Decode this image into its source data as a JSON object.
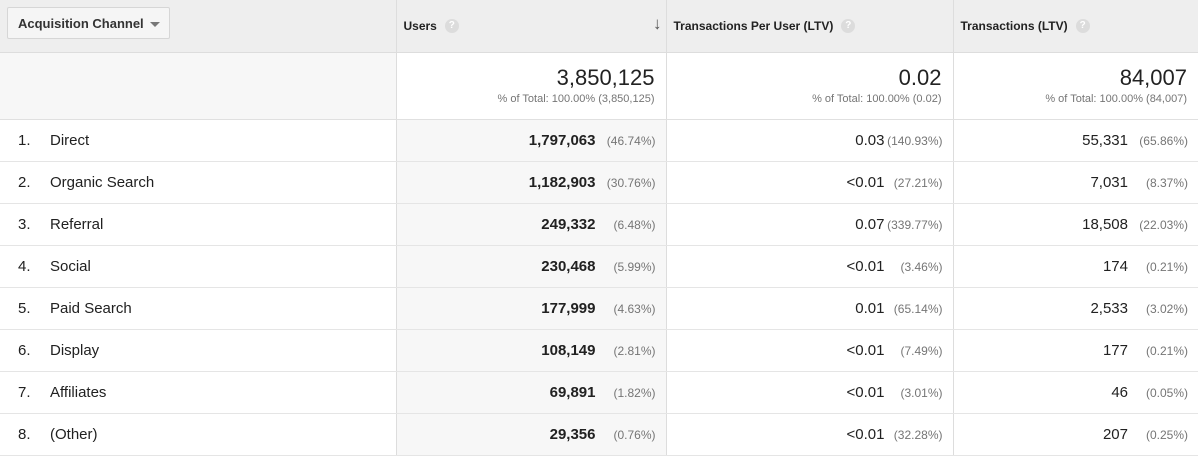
{
  "header": {
    "dimension_label": "Acquisition Channel",
    "columns": [
      {
        "label": "Users",
        "help": "?"
      },
      {
        "label": "Transactions Per User (LTV)",
        "help": "?"
      },
      {
        "label": "Transactions (LTV)",
        "help": "?"
      }
    ]
  },
  "totals": {
    "users": {
      "value": "3,850,125",
      "sub": "% of Total: 100.00% (3,850,125)"
    },
    "tpu": {
      "value": "0.02",
      "sub": "% of Total: 100.00% (0.02)"
    },
    "transactions": {
      "value": "84,007",
      "sub": "% of Total: 100.00% (84,007)"
    }
  },
  "rows": [
    {
      "rank": "1.",
      "name": "Direct",
      "users": "1,797,063",
      "users_pct": "(46.74%)",
      "tpu": "0.03",
      "tpu_pct": "(140.93%)",
      "tx": "55,331",
      "tx_pct": "(65.86%)"
    },
    {
      "rank": "2.",
      "name": "Organic Search",
      "users": "1,182,903",
      "users_pct": "(30.76%)",
      "tpu": "<0.01",
      "tpu_pct": "(27.21%)",
      "tx": "7,031",
      "tx_pct": "(8.37%)"
    },
    {
      "rank": "3.",
      "name": "Referral",
      "users": "249,332",
      "users_pct": "(6.48%)",
      "tpu": "0.07",
      "tpu_pct": "(339.77%)",
      "tx": "18,508",
      "tx_pct": "(22.03%)"
    },
    {
      "rank": "4.",
      "name": "Social",
      "users": "230,468",
      "users_pct": "(5.99%)",
      "tpu": "<0.01",
      "tpu_pct": "(3.46%)",
      "tx": "174",
      "tx_pct": "(0.21%)"
    },
    {
      "rank": "5.",
      "name": "Paid Search",
      "users": "177,999",
      "users_pct": "(4.63%)",
      "tpu": "0.01",
      "tpu_pct": "(65.14%)",
      "tx": "2,533",
      "tx_pct": "(3.02%)"
    },
    {
      "rank": "6.",
      "name": "Display",
      "users": "108,149",
      "users_pct": "(2.81%)",
      "tpu": "<0.01",
      "tpu_pct": "(7.49%)",
      "tx": "177",
      "tx_pct": "(0.21%)"
    },
    {
      "rank": "7.",
      "name": "Affiliates",
      "users": "69,891",
      "users_pct": "(1.82%)",
      "tpu": "<0.01",
      "tpu_pct": "(3.01%)",
      "tx": "46",
      "tx_pct": "(0.05%)"
    },
    {
      "rank": "8.",
      "name": "(Other)",
      "users": "29,356",
      "users_pct": "(0.76%)",
      "tpu": "<0.01",
      "tpu_pct": "(32.28%)",
      "tx": "207",
      "tx_pct": "(0.25%)"
    }
  ]
}
